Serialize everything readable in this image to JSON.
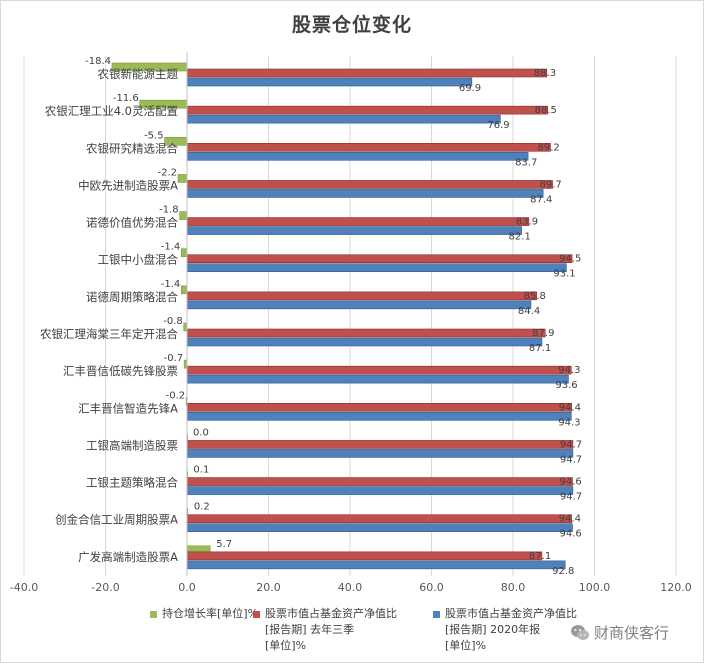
{
  "chart_data": {
    "type": "bar",
    "orientation": "horizontal",
    "title": "股票仓位变化",
    "categories": [
      "农银新能源主题",
      "农银汇理工业4.0灵活配置",
      "农银研究精选混合",
      "中欧先进制造股票A",
      "诺德价值优势混合",
      "工银中小盘混合",
      "诺德周期策略混合",
      "农银汇理海棠三年定开混合",
      "汇丰晋信低碳先锋股票",
      "汇丰晋信智造先锋A",
      "工银高端制造股票",
      "工银主题策略混合",
      "创金合信工业周期股票A",
      "广发高端制造股票A"
    ],
    "series": [
      {
        "name": "持仓增长率[单位]%",
        "color": "#9bbb59",
        "values": [
          -18.4,
          -11.6,
          -5.5,
          -2.2,
          -1.8,
          -1.4,
          -1.4,
          -0.8,
          -0.7,
          -0.2,
          0.0,
          0.1,
          0.2,
          5.7
        ]
      },
      {
        "name": "股票市值占基金资产净值比[报告期] 去年三季[单位]%",
        "color": "#c0504d",
        "values": [
          88.3,
          88.5,
          89.2,
          89.7,
          83.9,
          94.5,
          85.8,
          87.9,
          94.3,
          94.4,
          94.7,
          94.6,
          94.4,
          87.1
        ]
      },
      {
        "name": "股票市值占基金资产净值比[报告期] 2020年报[单位]%",
        "color": "#4f81bd",
        "values": [
          69.9,
          76.9,
          83.7,
          87.4,
          82.1,
          93.1,
          84.4,
          87.1,
          93.6,
          94.3,
          94.7,
          94.7,
          94.6,
          92.8
        ]
      }
    ],
    "value_labels": {
      "s0": [
        "-18.4",
        "-11.6",
        "-5.5",
        "-2.2",
        "-1.8",
        "-1.4",
        "-1.4",
        "-0.8",
        "-0.7",
        "-0.2",
        "0.0",
        "0.1",
        "0.2",
        "5.7"
      ],
      "s1": [
        "88.3",
        "88.5",
        "89.2",
        "89.7",
        "83.9",
        "94.5",
        "85.8",
        "87.9",
        "94.3",
        "94.4",
        "94.7",
        "94.6",
        "94.4",
        "87.1"
      ],
      "s2": [
        "69.9",
        "76.9",
        "83.7",
        "87.4",
        "82.1",
        "93.1",
        "84.4",
        "87.1",
        "93.6",
        "94.3",
        "94.7",
        "94.7",
        "94.6",
        "92.8"
      ]
    },
    "xlim": [
      -40,
      120
    ],
    "x_ticks": [
      "-40.0",
      "-20.0",
      "0.0",
      "20.0",
      "40.0",
      "60.0",
      "80.0",
      "100.0",
      "120.0"
    ],
    "x_tick_values": [
      -40,
      -20,
      0,
      20,
      40,
      60,
      80,
      100,
      120
    ],
    "grid": true,
    "legend_position": "bottom"
  },
  "legend": {
    "item0": "持仓增长率[单位]%",
    "item1_line1": "股票市值占基金资产净值比",
    "item1_line2": "[报告期] 去年三季",
    "item1_line3": "[单位]%",
    "item2_line1": "股票市值占基金资产净值比",
    "item2_line2": "[报告期] 2020年报",
    "item2_line3": "[单位]%"
  },
  "watermark": {
    "text": "财商侠客行"
  }
}
